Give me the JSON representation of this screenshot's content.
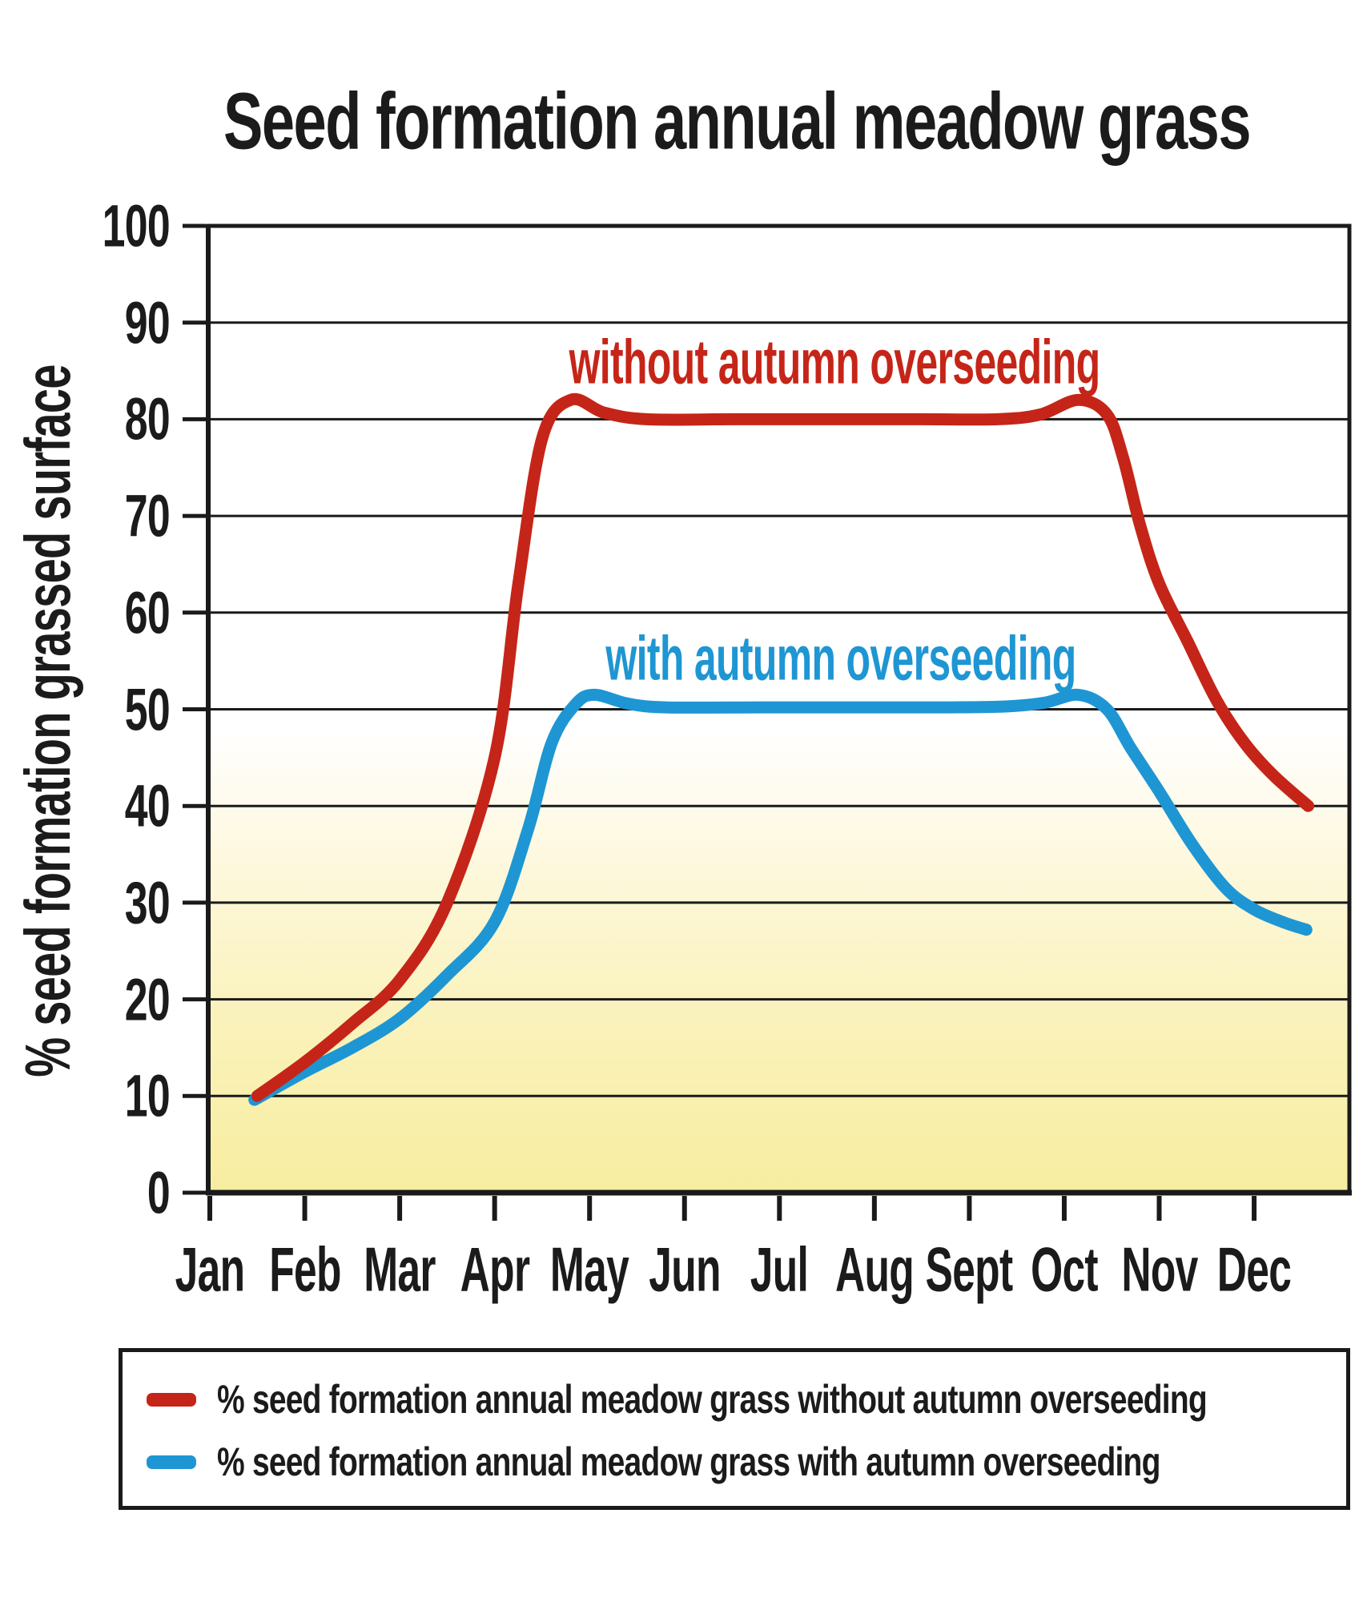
{
  "title": "Seed formation annual meadow grass",
  "y_axis": {
    "label": "% seed formation grassed surface",
    "tick_labels": [
      "100",
      "90",
      "80",
      "70",
      "60",
      "50",
      "40",
      "30",
      "20",
      "10",
      "0"
    ]
  },
  "x_axis": {
    "months": [
      "Jan",
      "Feb",
      "Mar",
      "Apr",
      "May",
      "Jun",
      "Jul",
      "Aug",
      "Sept",
      "Oct",
      "Nov",
      "Dec"
    ]
  },
  "series_labels": {
    "without": "without autumn overseeding",
    "with": "with autumn overseeding"
  },
  "legend": {
    "items": [
      {
        "label": "% seed formation annual meadow grass without autumn overseeding",
        "color_key": "red"
      },
      {
        "label": "% seed formation annual meadow grass with autumn overseeding",
        "color_key": "blue"
      }
    ]
  },
  "colors": {
    "red": "#c52518",
    "blue": "#1e96d3",
    "ink": "#1a1a1a",
    "plot_bg_top": "#ffffff",
    "plot_bg_bottom": "#f7eda0"
  },
  "chart_data": {
    "type": "line",
    "title": "Seed formation annual meadow grass",
    "xlabel": "",
    "ylabel": "% seed formation grassed surface",
    "x_categories": [
      "Jan",
      "Feb",
      "Mar",
      "Apr",
      "May",
      "Jun",
      "Jul",
      "Aug",
      "Sept",
      "Oct",
      "Nov",
      "Dec"
    ],
    "ylim": [
      0,
      100
    ],
    "ytick_step": 10,
    "grid": "horizontal lines every 10 units",
    "background": "white fading to pale yellow below ~45%",
    "legend_position": "boxed, below chart",
    "series": [
      {
        "name": "% seed formation annual meadow grass without autumn overseeding",
        "short_label": "without autumn overseeding",
        "color_key": "red",
        "values_at_month_ticks": [
          10,
          13.5,
          22,
          45,
          80,
          80,
          80,
          80,
          80,
          82,
          63,
          41.5
        ],
        "curve_points_month_value": [
          [
            0.5,
            10
          ],
          [
            1,
            13.5
          ],
          [
            1.5,
            17.5
          ],
          [
            2,
            22
          ],
          [
            2.5,
            30
          ],
          [
            3,
            45
          ],
          [
            3.25,
            63
          ],
          [
            3.5,
            78
          ],
          [
            3.8,
            82
          ],
          [
            4.15,
            80.7
          ],
          [
            4.6,
            80
          ],
          [
            5.5,
            80
          ],
          [
            6.5,
            80
          ],
          [
            7.5,
            80
          ],
          [
            8.3,
            80
          ],
          [
            8.75,
            80.5
          ],
          [
            9.15,
            82
          ],
          [
            9.45,
            80.5
          ],
          [
            9.62,
            76
          ],
          [
            9.8,
            69
          ],
          [
            10,
            63
          ],
          [
            10.3,
            57
          ],
          [
            10.6,
            51
          ],
          [
            10.9,
            46.5
          ],
          [
            11.2,
            43.2
          ],
          [
            11.57,
            40
          ]
        ]
      },
      {
        "name": "% seed formation annual meadow grass with autumn overseeding",
        "short_label": "with autumn overseeding",
        "color_key": "blue",
        "values_at_month_ticks": [
          10,
          12.5,
          18,
          28,
          51,
          50.2,
          50.2,
          50.2,
          50.3,
          51.3,
          41.5,
          28.7
        ],
        "curve_points_month_value": [
          [
            0.47,
            9.6
          ],
          [
            1,
            12.5
          ],
          [
            1.5,
            15
          ],
          [
            2,
            18
          ],
          [
            2.5,
            22.5
          ],
          [
            3,
            28
          ],
          [
            3.35,
            37.5
          ],
          [
            3.6,
            46.5
          ],
          [
            3.85,
            50.5
          ],
          [
            4.05,
            51.5
          ],
          [
            4.4,
            50.6
          ],
          [
            4.8,
            50.2
          ],
          [
            5.8,
            50.2
          ],
          [
            6.8,
            50.2
          ],
          [
            7.8,
            50.2
          ],
          [
            8.4,
            50.3
          ],
          [
            8.8,
            50.7
          ],
          [
            9.15,
            51.5
          ],
          [
            9.45,
            50
          ],
          [
            9.7,
            46
          ],
          [
            10,
            41.5
          ],
          [
            10.35,
            36
          ],
          [
            10.7,
            31.5
          ],
          [
            11,
            29.3
          ],
          [
            11.3,
            28
          ],
          [
            11.55,
            27.2
          ]
        ]
      }
    ]
  }
}
